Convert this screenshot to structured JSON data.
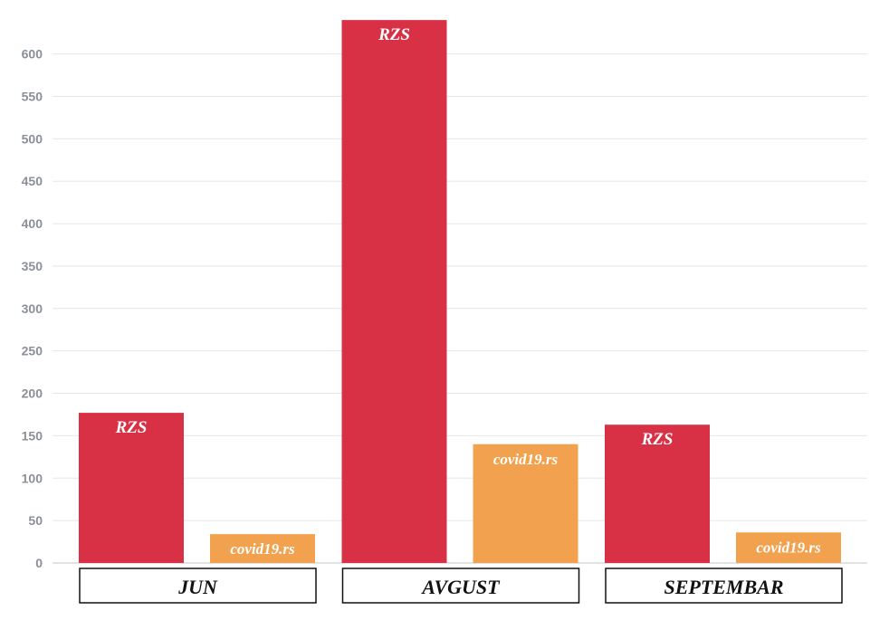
{
  "chart_data": {
    "type": "bar",
    "categories": [
      "JUN",
      "AVGUST",
      "SEPTEMBAR"
    ],
    "series": [
      {
        "labels": [
          "RZS",
          "RZS",
          "RZS"
        ],
        "values": [
          177,
          640,
          163
        ],
        "color": "#d83044"
      },
      {
        "labels": [
          "covid19.rs",
          "covid19.rs",
          "covid19.rs"
        ],
        "values": [
          34,
          140,
          36
        ],
        "color": "#f2a24e"
      }
    ],
    "yticks": [
      0,
      50,
      100,
      150,
      200,
      250,
      300,
      350,
      400,
      450,
      500,
      550,
      600
    ],
    "ylim": [
      0,
      640
    ],
    "grid": true,
    "legend": "none",
    "gridline_color": "#e6e6e6",
    "category_box_border": "#111111"
  }
}
